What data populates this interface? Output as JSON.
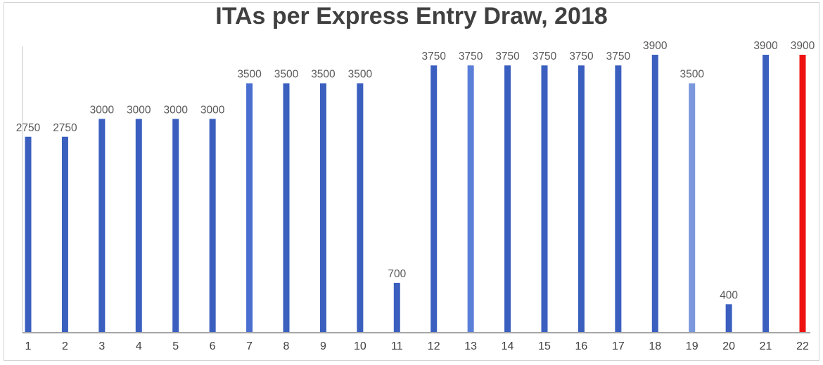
{
  "chart_data": {
    "type": "bar",
    "title": "ITAs per Express Entry Draw, 2018",
    "xlabel": "",
    "ylabel": "",
    "categories": [
      "1",
      "2",
      "3",
      "4",
      "5",
      "6",
      "7",
      "8",
      "9",
      "10",
      "11",
      "12",
      "13",
      "14",
      "15",
      "16",
      "17",
      "18",
      "19",
      "20",
      "21",
      "22"
    ],
    "values": [
      2750,
      2750,
      3000,
      3000,
      3000,
      3000,
      3500,
      3500,
      3500,
      3500,
      700,
      3750,
      3750,
      3750,
      3750,
      3750,
      3750,
      3900,
      3500,
      400,
      3900,
      3900
    ],
    "bar_colors": [
      "#3a5fbf",
      "#3a5fbf",
      "#3a5fbf",
      "#3a5fbf",
      "#3a5fbf",
      "#3a5fbf",
      "#4a6fd0",
      "#3a5fbf",
      "#3a5fbf",
      "#3a5fbf",
      "#3a5fbf",
      "#3a5fbf",
      "#5a7fd8",
      "#3a5fbf",
      "#3a5fbf",
      "#3a5fbf",
      "#3a5fbf",
      "#3a5fbf",
      "#7b98dc",
      "#3a5fbf",
      "#3a5fbf",
      "#ee1111"
    ],
    "ylim": [
      0,
      3900
    ],
    "grid": false,
    "legend": "none",
    "axis_color": "#a6a6a6"
  }
}
